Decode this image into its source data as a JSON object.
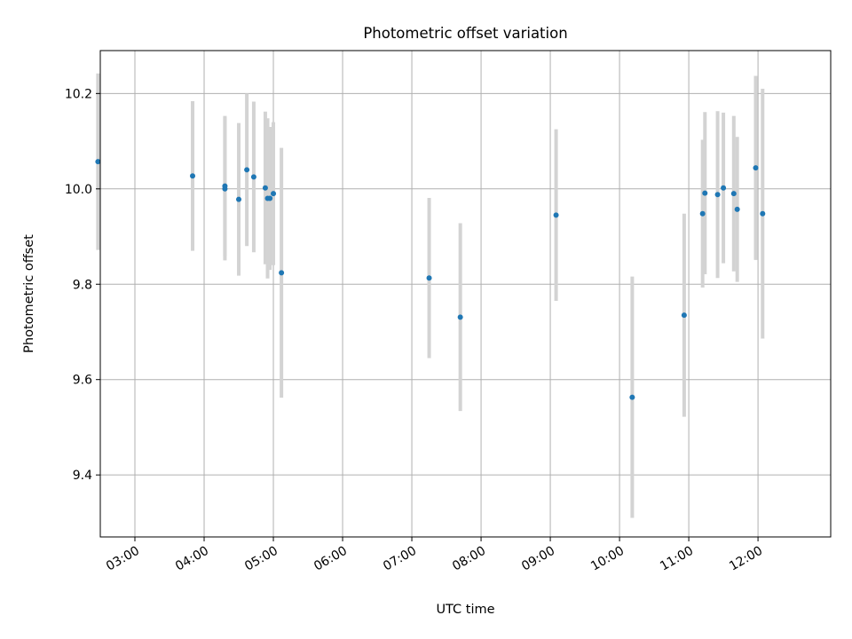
{
  "chart_data": {
    "type": "scatter",
    "title": "Photometric offset variation",
    "xlabel": "UTC time",
    "ylabel": "Photometric offset",
    "x_axis_type": "time",
    "xlim": [
      "02:30",
      "13:03"
    ],
    "ylim": [
      9.27,
      10.29
    ],
    "x_ticks": [
      "03:00",
      "04:00",
      "05:00",
      "06:00",
      "07:00",
      "08:00",
      "09:00",
      "10:00",
      "11:00",
      "12:00"
    ],
    "y_ticks": [
      9.4,
      9.6,
      9.8,
      10.0,
      10.2
    ],
    "y_tick_labels": [
      "9.4",
      "9.6",
      "9.8",
      "10.0",
      "10.2"
    ],
    "grid": true,
    "legend": "none",
    "colors": {
      "marker": "#1f77b4",
      "errorbar": "#d3d3d3",
      "grid": "#b0b0b0"
    },
    "points": [
      {
        "x": "02:28",
        "y": 10.057,
        "err": 0.185
      },
      {
        "x": "03:50",
        "y": 10.027,
        "err": 0.157
      },
      {
        "x": "04:18",
        "y": 10.006,
        "err": 0.147
      },
      {
        "x": "04:18",
        "y": 10.0,
        "err": 0.15
      },
      {
        "x": "04:30",
        "y": 9.978,
        "err": 0.16
      },
      {
        "x": "04:37",
        "y": 10.04,
        "err": 0.16
      },
      {
        "x": "04:43",
        "y": 10.025,
        "err": 0.158
      },
      {
        "x": "04:53",
        "y": 10.002,
        "err": 0.16
      },
      {
        "x": "04:55",
        "y": 9.98,
        "err": 0.168
      },
      {
        "x": "04:57",
        "y": 9.98,
        "err": 0.15
      },
      {
        "x": "05:00",
        "y": 9.99,
        "err": 0.15
      },
      {
        "x": "05:07",
        "y": 9.824,
        "err": 0.262
      },
      {
        "x": "07:15",
        "y": 9.813,
        "err": 0.168
      },
      {
        "x": "07:42",
        "y": 9.731,
        "err": 0.197
      },
      {
        "x": "09:05",
        "y": 9.945,
        "err": 0.18
      },
      {
        "x": "10:11",
        "y": 9.563,
        "err": 0.253
      },
      {
        "x": "10:56",
        "y": 9.735,
        "err": 0.213
      },
      {
        "x": "11:12",
        "y": 9.948,
        "err": 0.155
      },
      {
        "x": "11:14",
        "y": 9.991,
        "err": 0.17
      },
      {
        "x": "11:25",
        "y": 9.988,
        "err": 0.175
      },
      {
        "x": "11:30",
        "y": 10.002,
        "err": 0.158
      },
      {
        "x": "11:39",
        "y": 9.99,
        "err": 0.163
      },
      {
        "x": "11:42",
        "y": 9.957,
        "err": 0.152
      },
      {
        "x": "11:58",
        "y": 10.044,
        "err": 0.193
      },
      {
        "x": "12:04",
        "y": 9.948,
        "err": 0.262
      }
    ]
  }
}
